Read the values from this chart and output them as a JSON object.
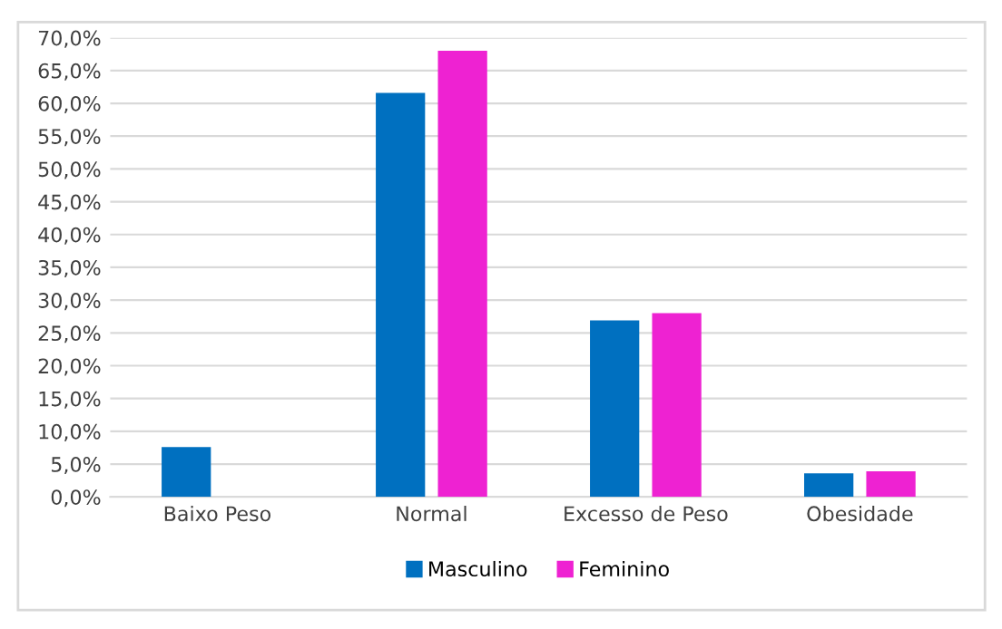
{
  "chart_data": {
    "type": "bar",
    "categories": [
      "Baixo Peso",
      "Normal",
      "Excesso de Peso",
      "Obesidade"
    ],
    "series": [
      {
        "name": "Masculino",
        "color": "#0070c0",
        "values": [
          7.6,
          61.6,
          26.9,
          3.6
        ]
      },
      {
        "name": "Feminino",
        "color": "#ee22d2",
        "values": [
          0.0,
          68.0,
          28.0,
          3.9
        ]
      }
    ],
    "ylim": [
      0,
      70
    ],
    "yticks": [
      {
        "value": 0,
        "label": "0,0%"
      },
      {
        "value": 5,
        "label": "5,0%"
      },
      {
        "value": 10,
        "label": "10,0%"
      },
      {
        "value": 15,
        "label": "15,0%"
      },
      {
        "value": 20,
        "label": "20,0%"
      },
      {
        "value": 25,
        "label": "25,0%"
      },
      {
        "value": 30,
        "label": "30,0%"
      },
      {
        "value": 35,
        "label": "35,0%"
      },
      {
        "value": 40,
        "label": "40,0%"
      },
      {
        "value": 45,
        "label": "45,0%"
      },
      {
        "value": 50,
        "label": "50,0%"
      },
      {
        "value": 55,
        "label": "55,0%"
      },
      {
        "value": 60,
        "label": "60,0%"
      },
      {
        "value": 65,
        "label": "65,0%"
      },
      {
        "value": 70,
        "label": "70,0%"
      }
    ],
    "grid": "y",
    "legend": "bottom"
  }
}
